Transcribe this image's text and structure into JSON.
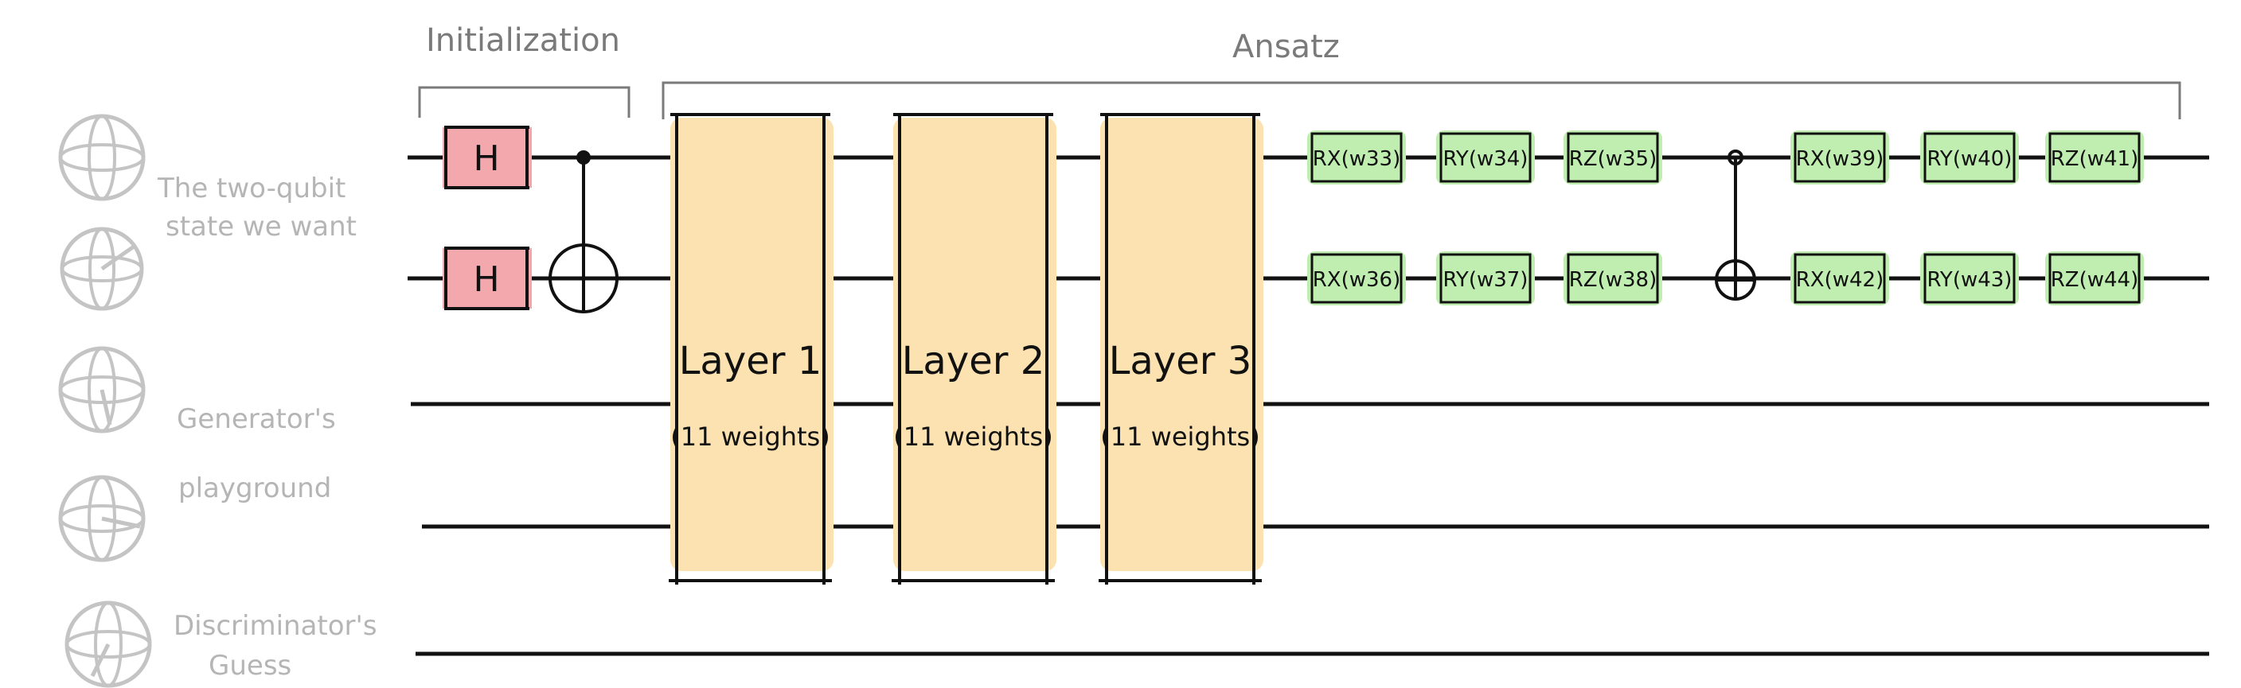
{
  "colors": {
    "wire": "#111111",
    "h_gate_fill": "#f2a8ad",
    "rot_gate_fill": "#bfeeb0",
    "layer_fill": "#fbe2b0",
    "sphere_gray": "#c4c4c4",
    "faint_text": "#b5b5b5",
    "section_text": "#7a7a7a"
  },
  "sections": {
    "initialization": "Initialization",
    "ansatz": "Ansatz"
  },
  "side_labels": {
    "target_state": [
      "The two-qubit",
      "state we want"
    ],
    "generator": [
      "Generator's",
      "playground"
    ],
    "discriminator": [
      "Discriminator's",
      "Guess"
    ]
  },
  "init_gates": {
    "h_label": "H"
  },
  "layers": [
    {
      "title": "Layer 1",
      "subtitle": "(11 weights)"
    },
    {
      "title": "Layer 2",
      "subtitle": "(11 weights)"
    },
    {
      "title": "Layer 3",
      "subtitle": "(11 weights)"
    }
  ],
  "gates_wire0": [
    "RX(w33)",
    "RY(w34)",
    "RZ(w35)",
    "RX(w39)",
    "RY(w40)",
    "RZ(w41)"
  ],
  "gates_wire1": [
    "RX(w36)",
    "RY(w37)",
    "RZ(w38)",
    "RX(w42)",
    "RY(w43)",
    "RZ(w44)"
  ],
  "icons": {
    "sphere": "bloch-sphere-icon",
    "cnot_control": "control-dot-icon",
    "cnot_target": "cnot-target-icon"
  }
}
